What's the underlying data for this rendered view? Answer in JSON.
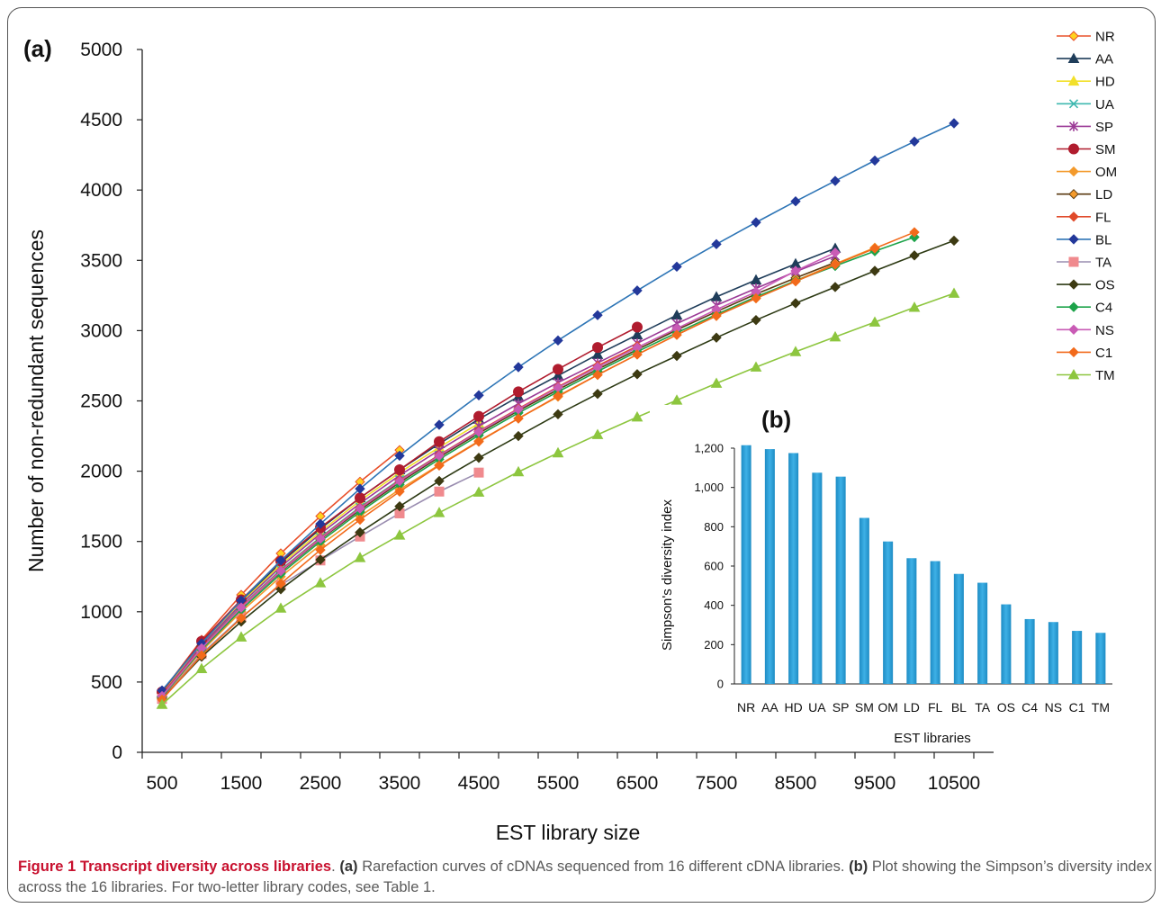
{
  "figure": {
    "panel_a_label": "(a)",
    "panel_b_label": "(b)",
    "caption": {
      "title": "Figure 1 Transcript diversity across libraries",
      "sep1": ". ",
      "tag_a": "(a)",
      "text_a": " Rarefaction curves of cDNAs sequenced from 16 different cDNA libraries. ",
      "tag_b": "(b)",
      "text_b": " Plot showing the Simpson’s diversity index across the 16 libraries. For two-letter library codes, see Table 1."
    }
  },
  "chart_data": [
    {
      "type": "line",
      "xlabel": "EST library size",
      "ylabel": "Number of non-redundant sequences",
      "xlim": [
        250,
        11000
      ],
      "ylim": [
        0,
        5000
      ],
      "x_ticks": [
        "500",
        "1500",
        "2500",
        "3500",
        "4500",
        "5500",
        "6500",
        "7500",
        "8500",
        "9500",
        "10500"
      ],
      "y_ticks": [
        "0",
        "500",
        "1000",
        "1500",
        "2000",
        "2500",
        "3000",
        "3500",
        "4000",
        "4500",
        "5000"
      ],
      "legend_position": "top-right",
      "series": [
        {
          "name": "NR",
          "color": "#e8502a",
          "marker": "diamond-yellow",
          "x": [
            500,
            1000,
            1500,
            2000,
            2500,
            3000,
            3500
          ],
          "y": [
            430,
            800,
            1120,
            1415,
            1680,
            1925,
            2150
          ]
        },
        {
          "name": "AA",
          "color": "#1f3d5a",
          "marker": "triangle",
          "x": [
            500,
            1000,
            1500,
            2000,
            2500,
            3000,
            3500,
            4000,
            4500,
            5000,
            5500,
            6000,
            6500,
            7000,
            7500,
            8000,
            8500,
            9000
          ],
          "y": [
            420,
            780,
            1075,
            1350,
            1590,
            1810,
            2010,
            2195,
            2370,
            2530,
            2680,
            2830,
            2970,
            3110,
            3240,
            3360,
            3475,
            3585
          ]
        },
        {
          "name": "HD",
          "color": "#f2e02a",
          "marker": "triangle",
          "x": [
            500,
            1000,
            1500,
            2000,
            2500,
            3000,
            3500,
            4000,
            4500
          ],
          "y": [
            415,
            770,
            1065,
            1335,
            1570,
            1790,
            1990,
            2170,
            2340
          ]
        },
        {
          "name": "UA",
          "color": "#3fb8b0",
          "marker": "x",
          "x": [
            500,
            1000,
            1500,
            2000,
            2500,
            3000,
            3500,
            4000,
            4500
          ],
          "y": [
            400,
            750,
            1040,
            1300,
            1530,
            1745,
            1940,
            2115,
            2285
          ]
        },
        {
          "name": "SP",
          "color": "#9b3a96",
          "marker": "star",
          "x": [
            500,
            1000,
            1500,
            2000,
            2500,
            3000,
            3500,
            4000,
            4500,
            5000,
            5500,
            6000,
            6500,
            7000,
            7500,
            8000,
            8500,
            9000
          ],
          "y": [
            410,
            760,
            1055,
            1320,
            1555,
            1770,
            1970,
            2150,
            2320,
            2480,
            2630,
            2770,
            2910,
            3050,
            3180,
            3300,
            3420,
            3530
          ]
        },
        {
          "name": "SM",
          "color": "#b01c2e",
          "marker": "circle",
          "x": [
            500,
            1000,
            1500,
            2000,
            2500,
            3000,
            3500,
            4000,
            4500,
            5000,
            5500,
            6000,
            6500
          ],
          "y": [
            430,
            790,
            1085,
            1360,
            1600,
            1810,
            2010,
            2210,
            2390,
            2565,
            2725,
            2880,
            3025
          ]
        },
        {
          "name": "OM",
          "color": "#f39a2c",
          "marker": "diamond",
          "x": [
            500,
            1000,
            1500,
            2000,
            2500,
            3000,
            3500,
            4000,
            4500,
            5000,
            5500,
            6000,
            6500,
            7000,
            7500,
            8000,
            8500,
            9000,
            9500
          ],
          "y": [
            390,
            720,
            1000,
            1250,
            1475,
            1680,
            1870,
            2045,
            2215,
            2375,
            2530,
            2685,
            2830,
            2970,
            3105,
            3230,
            3355,
            3475,
            3590
          ]
        },
        {
          "name": "LD",
          "color": "#5a3a10",
          "marker": "diamond-orange",
          "x": [
            500,
            1000,
            1500,
            2000,
            2500,
            3000,
            3500,
            4000,
            4500,
            5000,
            5500,
            6000,
            6500,
            7000,
            7500,
            8000,
            8500,
            9000
          ],
          "y": [
            400,
            740,
            1030,
            1285,
            1515,
            1725,
            1920,
            2100,
            2270,
            2430,
            2580,
            2725,
            2865,
            3005,
            3135,
            3260,
            3375,
            3485
          ]
        },
        {
          "name": "FL",
          "color": "#e04a2a",
          "marker": "diamond",
          "x": [
            500,
            1000,
            1500,
            2000,
            2500,
            3000,
            3500,
            4000,
            4500,
            5000,
            5500,
            6000,
            6500
          ],
          "y": [
            405,
            745,
            1035,
            1295,
            1525,
            1740,
            1935,
            2115,
            2285,
            2445,
            2600,
            2750,
            2890
          ]
        },
        {
          "name": "BL",
          "color": "#2e75b6",
          "marker": "diamond-navy",
          "x": [
            500,
            1000,
            1500,
            2000,
            2500,
            3000,
            3500,
            4000,
            4500,
            5000,
            5500,
            6000,
            6500,
            7000,
            7500,
            8000,
            8500,
            9000,
            9500,
            10000,
            10500
          ],
          "y": [
            440,
            775,
            1080,
            1365,
            1625,
            1875,
            2110,
            2330,
            2540,
            2740,
            2930,
            3110,
            3285,
            3455,
            3615,
            3770,
            3920,
            4065,
            4210,
            4345,
            4475
          ]
        },
        {
          "name": "TA",
          "color": "#9a8db0",
          "marker": "square",
          "x": [
            500,
            1000,
            1500,
            2000,
            2500,
            3000,
            3500,
            4000,
            4500
          ],
          "y": [
            380,
            700,
            960,
            1190,
            1365,
            1535,
            1700,
            1855,
            1990
          ]
        },
        {
          "name": "OS",
          "color": "#2d3a14",
          "marker": "diamond-dark",
          "x": [
            500,
            1000,
            1500,
            2000,
            2500,
            3000,
            3500,
            4000,
            4500,
            5000,
            5500,
            6000,
            6500,
            7000,
            7500,
            8000,
            8500,
            9000,
            9500,
            10000,
            10500
          ],
          "y": [
            380,
            680,
            930,
            1160,
            1370,
            1565,
            1750,
            1930,
            2095,
            2250,
            2405,
            2550,
            2690,
            2820,
            2950,
            3075,
            3195,
            3310,
            3425,
            3535,
            3640
          ]
        },
        {
          "name": "C4",
          "color": "#1da34a",
          "marker": "diamond",
          "x": [
            500,
            1000,
            1500,
            2000,
            2500,
            3000,
            3500,
            4000,
            4500,
            5000,
            5500,
            6000,
            6500,
            7000,
            7500,
            8000,
            8500,
            9000,
            9500,
            10000
          ],
          "y": [
            395,
            730,
            1015,
            1270,
            1500,
            1710,
            1905,
            2085,
            2255,
            2415,
            2565,
            2710,
            2850,
            2985,
            3115,
            3240,
            3355,
            3460,
            3565,
            3665
          ]
        },
        {
          "name": "NS",
          "color": "#c95bb5",
          "marker": "diamond",
          "x": [
            500,
            1000,
            1500,
            2000,
            2500,
            3000,
            3500,
            4000,
            4500,
            5000,
            5500,
            6000,
            6500,
            7000,
            7500,
            8000,
            8500,
            9000
          ],
          "y": [
            400,
            740,
            1030,
            1290,
            1520,
            1735,
            1930,
            2110,
            2280,
            2440,
            2595,
            2740,
            2880,
            3015,
            3150,
            3275,
            3425,
            3555
          ]
        },
        {
          "name": "C1",
          "color": "#f26a1b",
          "marker": "diamond",
          "x": [
            500,
            1000,
            1500,
            2000,
            2500,
            3000,
            3500,
            4000,
            4500,
            5000,
            5500,
            6000,
            6500,
            7000,
            7500,
            8000,
            8500,
            9000,
            9500,
            10000
          ],
          "y": [
            375,
            690,
            955,
            1200,
            1440,
            1655,
            1855,
            2040,
            2210,
            2375,
            2535,
            2685,
            2830,
            2970,
            3105,
            3230,
            3350,
            3470,
            3585,
            3700
          ]
        },
        {
          "name": "TM",
          "color": "#8dc63f",
          "marker": "triangle",
          "x": [
            500,
            1000,
            1500,
            2000,
            2500,
            3000,
            3500,
            4000,
            4500,
            5000,
            5500,
            6000,
            6500,
            7000,
            7500,
            8000,
            8500,
            9000,
            9500,
            10000,
            10500
          ],
          "y": [
            340,
            595,
            820,
            1025,
            1205,
            1385,
            1545,
            1705,
            1850,
            1995,
            2130,
            2260,
            2385,
            2505,
            2625,
            2740,
            2850,
            2955,
            3060,
            3165,
            3265
          ]
        }
      ]
    },
    {
      "type": "bar",
      "xlabel": "EST libraries",
      "ylabel": "Simpson's diversity index",
      "ylim": [
        0,
        1200
      ],
      "y_ticks": [
        "0",
        "200",
        "400",
        "600",
        "800",
        "1,000",
        "1,200"
      ],
      "color": "#2b9fd4",
      "categories": [
        "NR",
        "AA",
        "HD",
        "UA",
        "SP",
        "SM",
        "OM",
        "LD",
        "FL",
        "BL",
        "TA",
        "OS",
        "C4",
        "NS",
        "C1",
        "TM"
      ],
      "values": [
        1215,
        1195,
        1175,
        1075,
        1055,
        845,
        725,
        640,
        625,
        560,
        515,
        405,
        330,
        315,
        270,
        260
      ]
    }
  ]
}
